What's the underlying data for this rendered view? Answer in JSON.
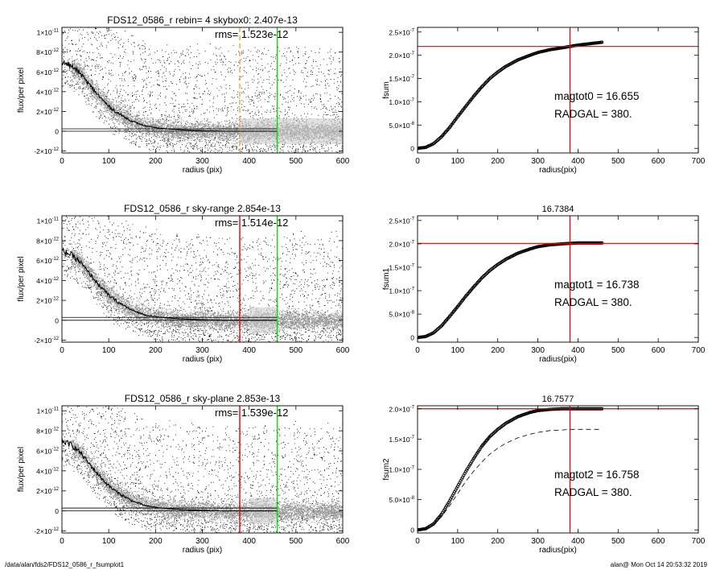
{
  "footer": {
    "left": "/data/alan/fds2/FDS12_0586_r_fsumplot1",
    "right": "alan@  Mon Oct 14 20:53:32 2019"
  },
  "colors": {
    "scatter_black": "#000000",
    "scatter_grey": "#9a9a9a",
    "red": "#e00000",
    "green": "#00dd00",
    "orange": "#f0a040",
    "curve": "#000000"
  },
  "chart_data": [
    {
      "type": "scatter",
      "panel": "left-top",
      "title": "FDS12_0586_r rebin= 4    skybox0:  2.407e-13",
      "annotation": "rms= 1.523e-12",
      "xlabel": "radius (pix)",
      "ylabel": "flux/per pixel",
      "xlim": [
        0,
        600
      ],
      "ylim": [
        -2.2e-12,
        1.05e-11
      ],
      "xticks": [
        "0",
        "100",
        "200",
        "300",
        "400",
        "500",
        "600"
      ],
      "yticks": [
        {
          "value": 1e-11,
          "mant": "1×10",
          "exp": "-11"
        },
        {
          "value": 8e-12,
          "mant": "8×10",
          "exp": "-12"
        },
        {
          "value": 6e-12,
          "mant": "6×10",
          "exp": "-12"
        },
        {
          "value": 4e-12,
          "mant": "4×10",
          "exp": "-12"
        },
        {
          "value": 2e-12,
          "mant": "2×10",
          "exp": "-12"
        },
        {
          "value": 0,
          "mant": "0",
          "exp": ""
        },
        {
          "value": -2e-12,
          "mant": "-2×10",
          "exp": "-12"
        }
      ],
      "profile": {
        "x": [
          0,
          20,
          40,
          60,
          80,
          100,
          120,
          150,
          180,
          210,
          250,
          300,
          350,
          400,
          460
        ],
        "y": [
          7e-12,
          6.6e-12,
          5.8e-12,
          4.6e-12,
          3.5e-12,
          2.5e-12,
          1.8e-12,
          1e-12,
          5e-13,
          3e-13,
          1.5e-13,
          5e-14,
          0,
          0,
          0
        ]
      },
      "hlines": [
        2.407e-13,
        0
      ],
      "vlines": [
        {
          "x": 380,
          "color": "orange",
          "dashed": true
        },
        {
          "x": 460,
          "color": "green",
          "dashed": false
        }
      ],
      "sky_region": [
        380,
        600
      ]
    },
    {
      "type": "line",
      "panel": "right-top",
      "title": "",
      "ylabel": "fsum",
      "xlabel": "radius(pix)",
      "xlim": [
        0,
        700
      ],
      "ylim": [
        -1e-08,
        2.6e-07
      ],
      "xticks": [
        "0",
        "100",
        "200",
        "300",
        "400",
        "500",
        "600",
        "700"
      ],
      "yticks": [
        {
          "value": 2.5e-07,
          "mant": "2.5×10",
          "exp": "-7"
        },
        {
          "value": 2e-07,
          "mant": "2.0×10",
          "exp": "-7"
        },
        {
          "value": 1.5e-07,
          "mant": "1.5×10",
          "exp": "-7"
        },
        {
          "value": 1e-07,
          "mant": "1.0×10",
          "exp": "-7"
        },
        {
          "value": 5e-08,
          "mant": "5.0×10",
          "exp": "-8"
        },
        {
          "value": 0,
          "mant": "0",
          "exp": ""
        }
      ],
      "curve": {
        "x": [
          0,
          20,
          40,
          60,
          80,
          100,
          120,
          140,
          160,
          180,
          200,
          220,
          250,
          280,
          300,
          330,
          360,
          380,
          400,
          430,
          460
        ],
        "y": [
          0,
          2e-09,
          1e-08,
          2.5e-08,
          4.5e-08,
          6.8e-08,
          9e-08,
          1.12e-07,
          1.32e-07,
          1.5e-07,
          1.64e-07,
          1.76e-07,
          1.9e-07,
          2e-07,
          2.06e-07,
          2.12e-07,
          2.16e-07,
          2.19e-07,
          2.22e-07,
          2.25e-07,
          2.28e-07
        ]
      },
      "dashed_curve": null,
      "hline": 2.19e-07,
      "vline": 380,
      "text1": "magtot0 =  16.655",
      "text2": "RADGAL =    380."
    },
    {
      "type": "scatter",
      "panel": "left-middle",
      "title": "FDS12_0586_r sky-range  2.854e-13",
      "annotation": "rms= 1.514e-12",
      "xlabel": "radius (pix)",
      "ylabel": "flux/per pixel",
      "xlim": [
        0,
        600
      ],
      "ylim": [
        -2.2e-12,
        1.05e-11
      ],
      "xticks": [
        "0",
        "100",
        "200",
        "300",
        "400",
        "500",
        "600"
      ],
      "yticks": [
        {
          "value": 1e-11,
          "mant": "1×10",
          "exp": "-11"
        },
        {
          "value": 8e-12,
          "mant": "8×10",
          "exp": "-12"
        },
        {
          "value": 6e-12,
          "mant": "6×10",
          "exp": "-12"
        },
        {
          "value": 4e-12,
          "mant": "4×10",
          "exp": "-12"
        },
        {
          "value": 2e-12,
          "mant": "2×10",
          "exp": "-12"
        },
        {
          "value": 0,
          "mant": "0",
          "exp": ""
        },
        {
          "value": -2e-12,
          "mant": "-2×10",
          "exp": "-12"
        }
      ],
      "profile": {
        "x": [
          0,
          20,
          40,
          60,
          80,
          100,
          120,
          150,
          180,
          210,
          250,
          300,
          350,
          400,
          460
        ],
        "y": [
          7e-12,
          6.6e-12,
          5.8e-12,
          4.6e-12,
          3.5e-12,
          2.5e-12,
          1.8e-12,
          1e-12,
          5e-13,
          3e-13,
          1.5e-13,
          5e-14,
          0,
          0,
          0
        ]
      },
      "hlines": [
        2.854e-13,
        0
      ],
      "vlines": [
        {
          "x": 380,
          "color": "red",
          "dashed": false
        },
        {
          "x": 460,
          "color": "green",
          "dashed": false
        }
      ],
      "sky_region": [
        400,
        460
      ]
    },
    {
      "type": "line",
      "panel": "right-middle",
      "title": "16.7384",
      "ylabel": "fsum1",
      "xlabel": "radius(pix)",
      "xlim": [
        0,
        700
      ],
      "ylim": [
        -1e-08,
        2.6e-07
      ],
      "xticks": [
        "0",
        "100",
        "200",
        "300",
        "400",
        "500",
        "600",
        "700"
      ],
      "yticks": [
        {
          "value": 2.5e-07,
          "mant": "2.5×10",
          "exp": "-7"
        },
        {
          "value": 2e-07,
          "mant": "2.0×10",
          "exp": "-7"
        },
        {
          "value": 1.5e-07,
          "mant": "1.5×10",
          "exp": "-7"
        },
        {
          "value": 1e-07,
          "mant": "1.0×10",
          "exp": "-7"
        },
        {
          "value": 5e-08,
          "mant": "5.0×10",
          "exp": "-8"
        },
        {
          "value": 0,
          "mant": "0",
          "exp": ""
        }
      ],
      "curve": {
        "x": [
          0,
          20,
          40,
          60,
          80,
          100,
          120,
          140,
          160,
          180,
          200,
          220,
          250,
          280,
          300,
          330,
          360,
          380,
          400,
          430,
          460
        ],
        "y": [
          0,
          2e-09,
          1e-08,
          2.5e-08,
          4.5e-08,
          6.6e-08,
          8.8e-08,
          1.08e-07,
          1.27e-07,
          1.43e-07,
          1.56e-07,
          1.67e-07,
          1.8e-07,
          1.89e-07,
          1.94e-07,
          1.98e-07,
          2e-07,
          2.01e-07,
          2.02e-07,
          2.02e-07,
          2.02e-07
        ]
      },
      "dashed_curve": null,
      "hline": 2.01e-07,
      "vline": 380,
      "text1": "magtot1 =  16.738",
      "text2": "RADGAL =    380."
    },
    {
      "type": "scatter",
      "panel": "left-bottom",
      "title": "FDS12_0586_r sky-plane  2.853e-13",
      "annotation": "rms= 1.539e-12",
      "xlabel": "radius (pix)",
      "ylabel": "flux/per pixel",
      "xlim": [
        0,
        600
      ],
      "ylim": [
        -2.2e-12,
        1.05e-11
      ],
      "xticks": [
        "0",
        "100",
        "200",
        "300",
        "400",
        "500",
        "600"
      ],
      "yticks": [
        {
          "value": 1e-11,
          "mant": "1×10",
          "exp": "-11"
        },
        {
          "value": 8e-12,
          "mant": "8×10",
          "exp": "-12"
        },
        {
          "value": 6e-12,
          "mant": "6×10",
          "exp": "-12"
        },
        {
          "value": 4e-12,
          "mant": "4×10",
          "exp": "-12"
        },
        {
          "value": 2e-12,
          "mant": "2×10",
          "exp": "-12"
        },
        {
          "value": 0,
          "mant": "0",
          "exp": ""
        },
        {
          "value": -2e-12,
          "mant": "-2×10",
          "exp": "-12"
        }
      ],
      "profile": {
        "x": [
          0,
          20,
          40,
          60,
          80,
          100,
          120,
          150,
          180,
          210,
          250,
          300,
          350,
          400,
          460
        ],
        "y": [
          7e-12,
          6.6e-12,
          5.8e-12,
          4.6e-12,
          3.5e-12,
          2.5e-12,
          1.8e-12,
          1e-12,
          5e-13,
          3e-13,
          1.5e-13,
          5e-14,
          0,
          0,
          0
        ]
      },
      "hlines": [
        2.853e-13,
        0
      ],
      "vlines": [
        {
          "x": 380,
          "color": "red",
          "dashed": false
        },
        {
          "x": 460,
          "color": "green",
          "dashed": false
        }
      ],
      "sky_region": [
        400,
        460
      ]
    },
    {
      "type": "line",
      "panel": "right-bottom",
      "title": "16.7577",
      "ylabel": "fsum2",
      "xlabel": "radius(pix)",
      "xlim": [
        0,
        700
      ],
      "ylim": [
        -5e-09,
        2.05e-07
      ],
      "xticks": [
        "0",
        "100",
        "200",
        "300",
        "400",
        "500",
        "600",
        "700"
      ],
      "yticks": [
        {
          "value": 2e-07,
          "mant": "2.0×10",
          "exp": "-7"
        },
        {
          "value": 1.5e-07,
          "mant": "1.5×10",
          "exp": "-7"
        },
        {
          "value": 1e-07,
          "mant": "1.0×10",
          "exp": "-7"
        },
        {
          "value": 5e-08,
          "mant": "5.0×10",
          "exp": "-8"
        },
        {
          "value": 0,
          "mant": "0",
          "exp": ""
        }
      ],
      "curve": {
        "x": [
          0,
          20,
          40,
          60,
          80,
          100,
          120,
          140,
          160,
          180,
          200,
          220,
          250,
          280,
          300,
          330,
          360,
          380,
          400,
          430,
          460
        ],
        "y": [
          0,
          2e-09,
          1e-08,
          2.6e-08,
          4.8e-08,
          7.2e-08,
          9.6e-08,
          1.18e-07,
          1.38e-07,
          1.54e-07,
          1.66e-07,
          1.76e-07,
          1.87e-07,
          1.94e-07,
          1.97e-07,
          1.99e-07,
          2e-07,
          2e-07,
          2e-07,
          2e-07,
          2e-07
        ]
      },
      "dashed_curve": {
        "x": [
          0,
          20,
          40,
          60,
          80,
          100,
          120,
          140,
          160,
          180,
          200,
          220,
          250,
          280,
          300,
          330,
          360,
          380,
          400,
          430,
          460
        ],
        "y": [
          0,
          2e-09,
          9e-09,
          2.2e-08,
          4e-08,
          6e-08,
          8e-08,
          9.7e-08,
          1.12e-07,
          1.25e-07,
          1.35e-07,
          1.43e-07,
          1.52e-07,
          1.58e-07,
          1.61e-07,
          1.64e-07,
          1.65e-07,
          1.66e-07,
          1.66e-07,
          1.66e-07,
          1.66e-07
        ]
      },
      "hline": 2e-07,
      "vline": 380,
      "text1": "magtot2 =  16.758",
      "text2": "RADGAL =    380."
    }
  ]
}
